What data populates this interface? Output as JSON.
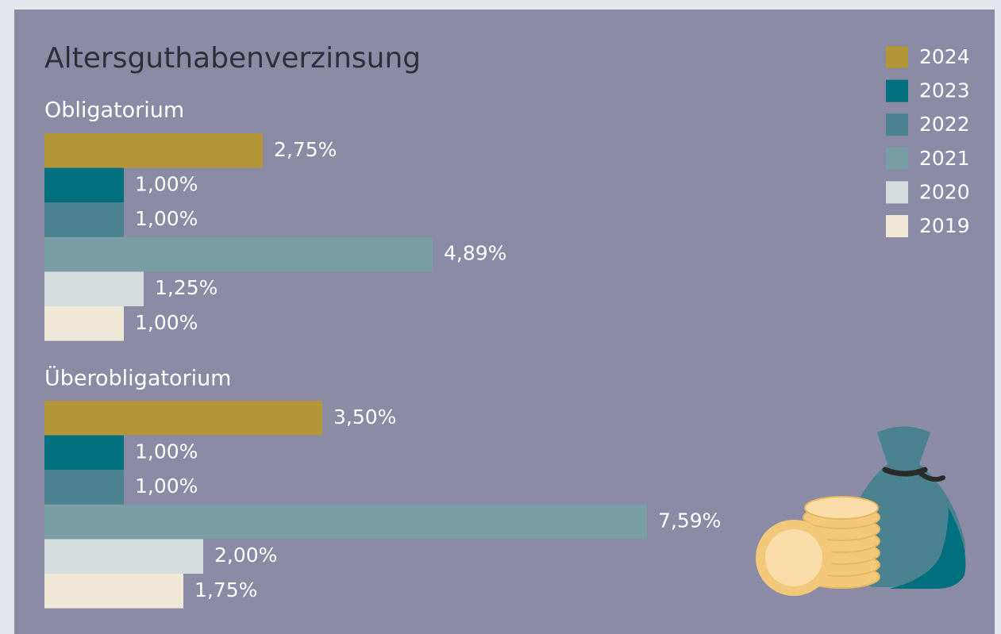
{
  "chart_data": {
    "type": "bar",
    "orientation": "horizontal",
    "title": "Altersguthabenverzinsung",
    "categories": [
      "Obligatorium",
      "Überobligatorium"
    ],
    "series": [
      {
        "name": "2024",
        "color": "#b3953a",
        "values": [
          2.75,
          3.5
        ],
        "value_labels": [
          "2,75%",
          "3,50%"
        ]
      },
      {
        "name": "2023",
        "color": "#00707e",
        "values": [
          1.0,
          1.0
        ],
        "value_labels": [
          "1,00%",
          "1,00%"
        ]
      },
      {
        "name": "2022",
        "color": "#4a8290",
        "values": [
          1.0,
          1.0
        ],
        "value_labels": [
          "1,00%",
          "1,00%"
        ]
      },
      {
        "name": "2021",
        "color": "#7a9ea6",
        "values": [
          4.89,
          7.59
        ],
        "value_labels": [
          "4,89%",
          "7,59%"
        ]
      },
      {
        "name": "2020",
        "color": "#d4dcdd",
        "values": [
          1.25,
          2.0
        ],
        "value_labels": [
          "1,25%",
          "2,00%"
        ]
      },
      {
        "name": "2019",
        "color": "#f0e8d6",
        "values": [
          1.0,
          1.75
        ],
        "value_labels": [
          "1,00%",
          "1,75%"
        ]
      }
    ],
    "legend": "top-right"
  }
}
